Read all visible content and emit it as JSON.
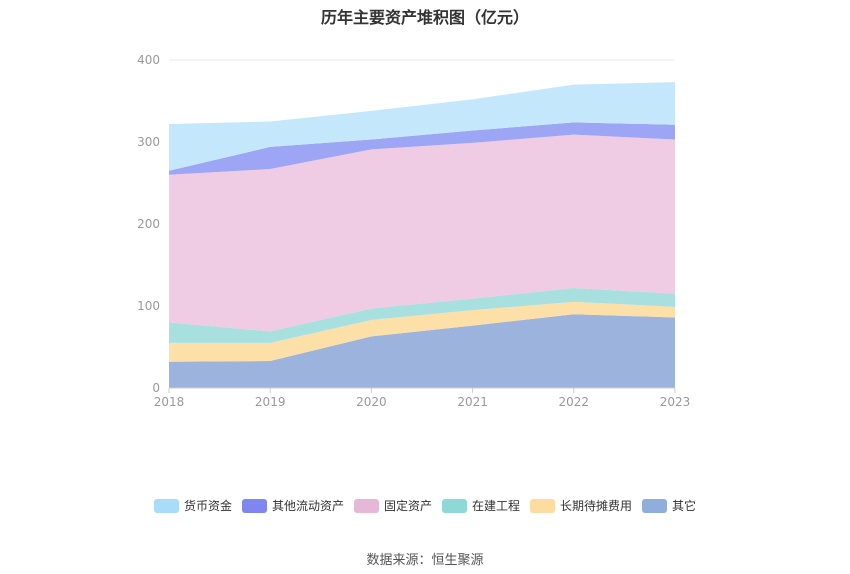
{
  "chart_data": {
    "type": "area",
    "stacked": true,
    "title": "历年主要资产堆积图（亿元）",
    "x": [
      "2018",
      "2019",
      "2020",
      "2021",
      "2022",
      "2023"
    ],
    "yticks": [
      "0",
      "100",
      "200",
      "300",
      "400"
    ],
    "ylim": [
      0,
      400
    ],
    "grid": true,
    "legend_position": "bottom",
    "series": [
      {
        "name": "其它",
        "color": "#9cb4dd",
        "values": [
          32,
          33,
          63,
          76,
          90,
          86
        ]
      },
      {
        "name": "长期待摊费用",
        "color": "#fde0a8",
        "values": [
          23,
          22,
          20,
          19,
          15,
          13
        ]
      },
      {
        "name": "在建工程",
        "color": "#a8e0e0",
        "values": [
          25,
          14,
          14,
          14,
          17,
          16
        ]
      },
      {
        "name": "固定资产",
        "color": "#efcce3",
        "values": [
          180,
          198,
          194,
          190,
          187,
          188
        ]
      },
      {
        "name": "其他流动资产",
        "color": "#9da6f5",
        "values": [
          5,
          27,
          12,
          15,
          15,
          18
        ]
      },
      {
        "name": "货币资金",
        "color": "#c4e7fb",
        "values": [
          57,
          31,
          35,
          38,
          46,
          52
        ]
      }
    ],
    "legend_colors": [
      "#a8dcf8",
      "#7f86f0",
      "#e6b8d8",
      "#8fd8d8",
      "#fddca0",
      "#90aedc"
    ]
  },
  "source": "数据来源：恒生聚源"
}
